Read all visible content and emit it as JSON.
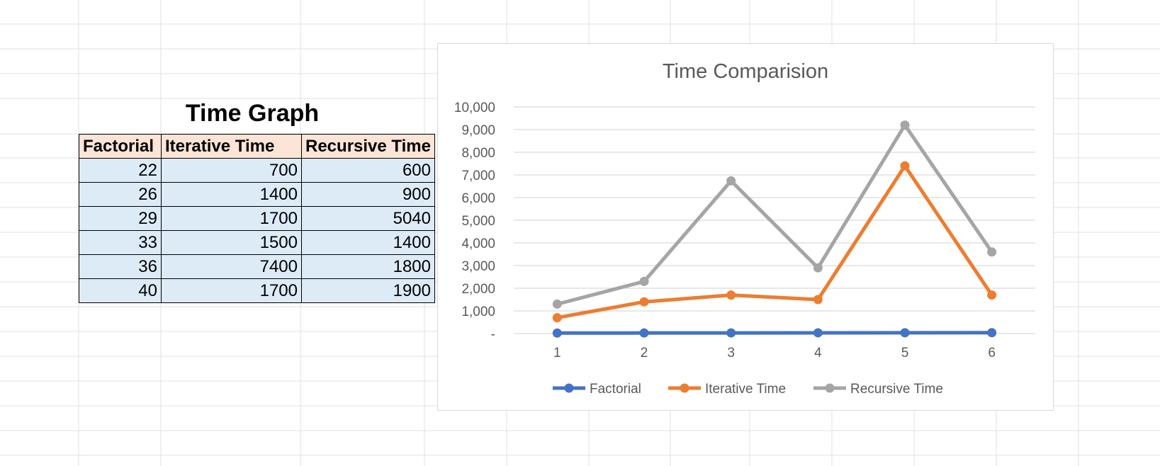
{
  "table": {
    "title": "Time Graph",
    "headers": [
      "Factorial",
      "Iterative Time",
      "Recursive Time"
    ],
    "rows": [
      [
        "22",
        "700",
        "600"
      ],
      [
        "26",
        "1400",
        "900"
      ],
      [
        "29",
        "1700",
        "5040"
      ],
      [
        "33",
        "1500",
        "1400"
      ],
      [
        "36",
        "7400",
        "1800"
      ],
      [
        "40",
        "1700",
        "1900"
      ]
    ]
  },
  "chart_data": {
    "type": "line",
    "title": "Time Comparision",
    "xlabel": "",
    "ylabel": "",
    "categories": [
      "1",
      "2",
      "3",
      "4",
      "5",
      "6"
    ],
    "ylim": [
      0,
      10000
    ],
    "yticks": [
      0,
      1000,
      2000,
      3000,
      4000,
      5000,
      6000,
      7000,
      8000,
      9000,
      10000
    ],
    "ytick_labels": [
      "-",
      "1,000",
      "2,000",
      "3,000",
      "4,000",
      "5,000",
      "6,000",
      "7,000",
      "8,000",
      "9,000",
      "10,000"
    ],
    "grid": true,
    "legend_position": "bottom",
    "series": [
      {
        "name": "Factorial",
        "color": "#4472c4",
        "values": [
          22,
          26,
          29,
          33,
          36,
          40
        ]
      },
      {
        "name": "Iterative Time",
        "color": "#ed7d31",
        "values": [
          700,
          1400,
          1700,
          1500,
          7400,
          1700
        ]
      },
      {
        "name": "Recursive Time",
        "color": "#a5a5a5",
        "values": [
          1300,
          2300,
          6740,
          2900,
          9200,
          3600
        ]
      }
    ]
  }
}
